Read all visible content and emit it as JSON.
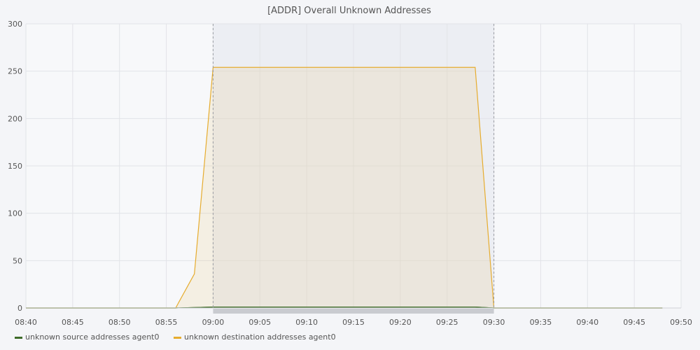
{
  "chart_data": {
    "type": "area",
    "title": "[ADDR] Overall Unknown Addresses",
    "x_ticks": [
      "08:40",
      "08:45",
      "08:50",
      "08:55",
      "09:00",
      "09:05",
      "09:10",
      "09:15",
      "09:20",
      "09:25",
      "09:30",
      "09:35",
      "09:40",
      "09:45",
      "09:50"
    ],
    "y_ticks": [
      0,
      50,
      100,
      150,
      200,
      250,
      300
    ],
    "xlim": [
      "08:40",
      "09:50"
    ],
    "ylim": [
      0,
      300
    ],
    "grid": true,
    "legend_position": "bottom-left",
    "highlight_range": [
      "09:00",
      "09:30"
    ],
    "series": [
      {
        "name": "unknown source addresses agent0",
        "color": "#3d6b28",
        "fill": false,
        "points": [
          [
            "08:40",
            0
          ],
          [
            "08:56",
            0
          ],
          [
            "08:58",
            0.5
          ],
          [
            "09:00",
            1
          ],
          [
            "09:28",
            1
          ],
          [
            "09:30",
            0
          ],
          [
            "09:48",
            0
          ]
        ]
      },
      {
        "name": "unknown destination addresses agent0",
        "color": "#e6ac2e",
        "fill": true,
        "points": [
          [
            "08:40",
            0
          ],
          [
            "08:56",
            0
          ],
          [
            "08:58",
            36
          ],
          [
            "09:00",
            254
          ],
          [
            "09:28",
            254
          ],
          [
            "09:30",
            0
          ],
          [
            "09:48",
            0
          ]
        ]
      }
    ]
  }
}
